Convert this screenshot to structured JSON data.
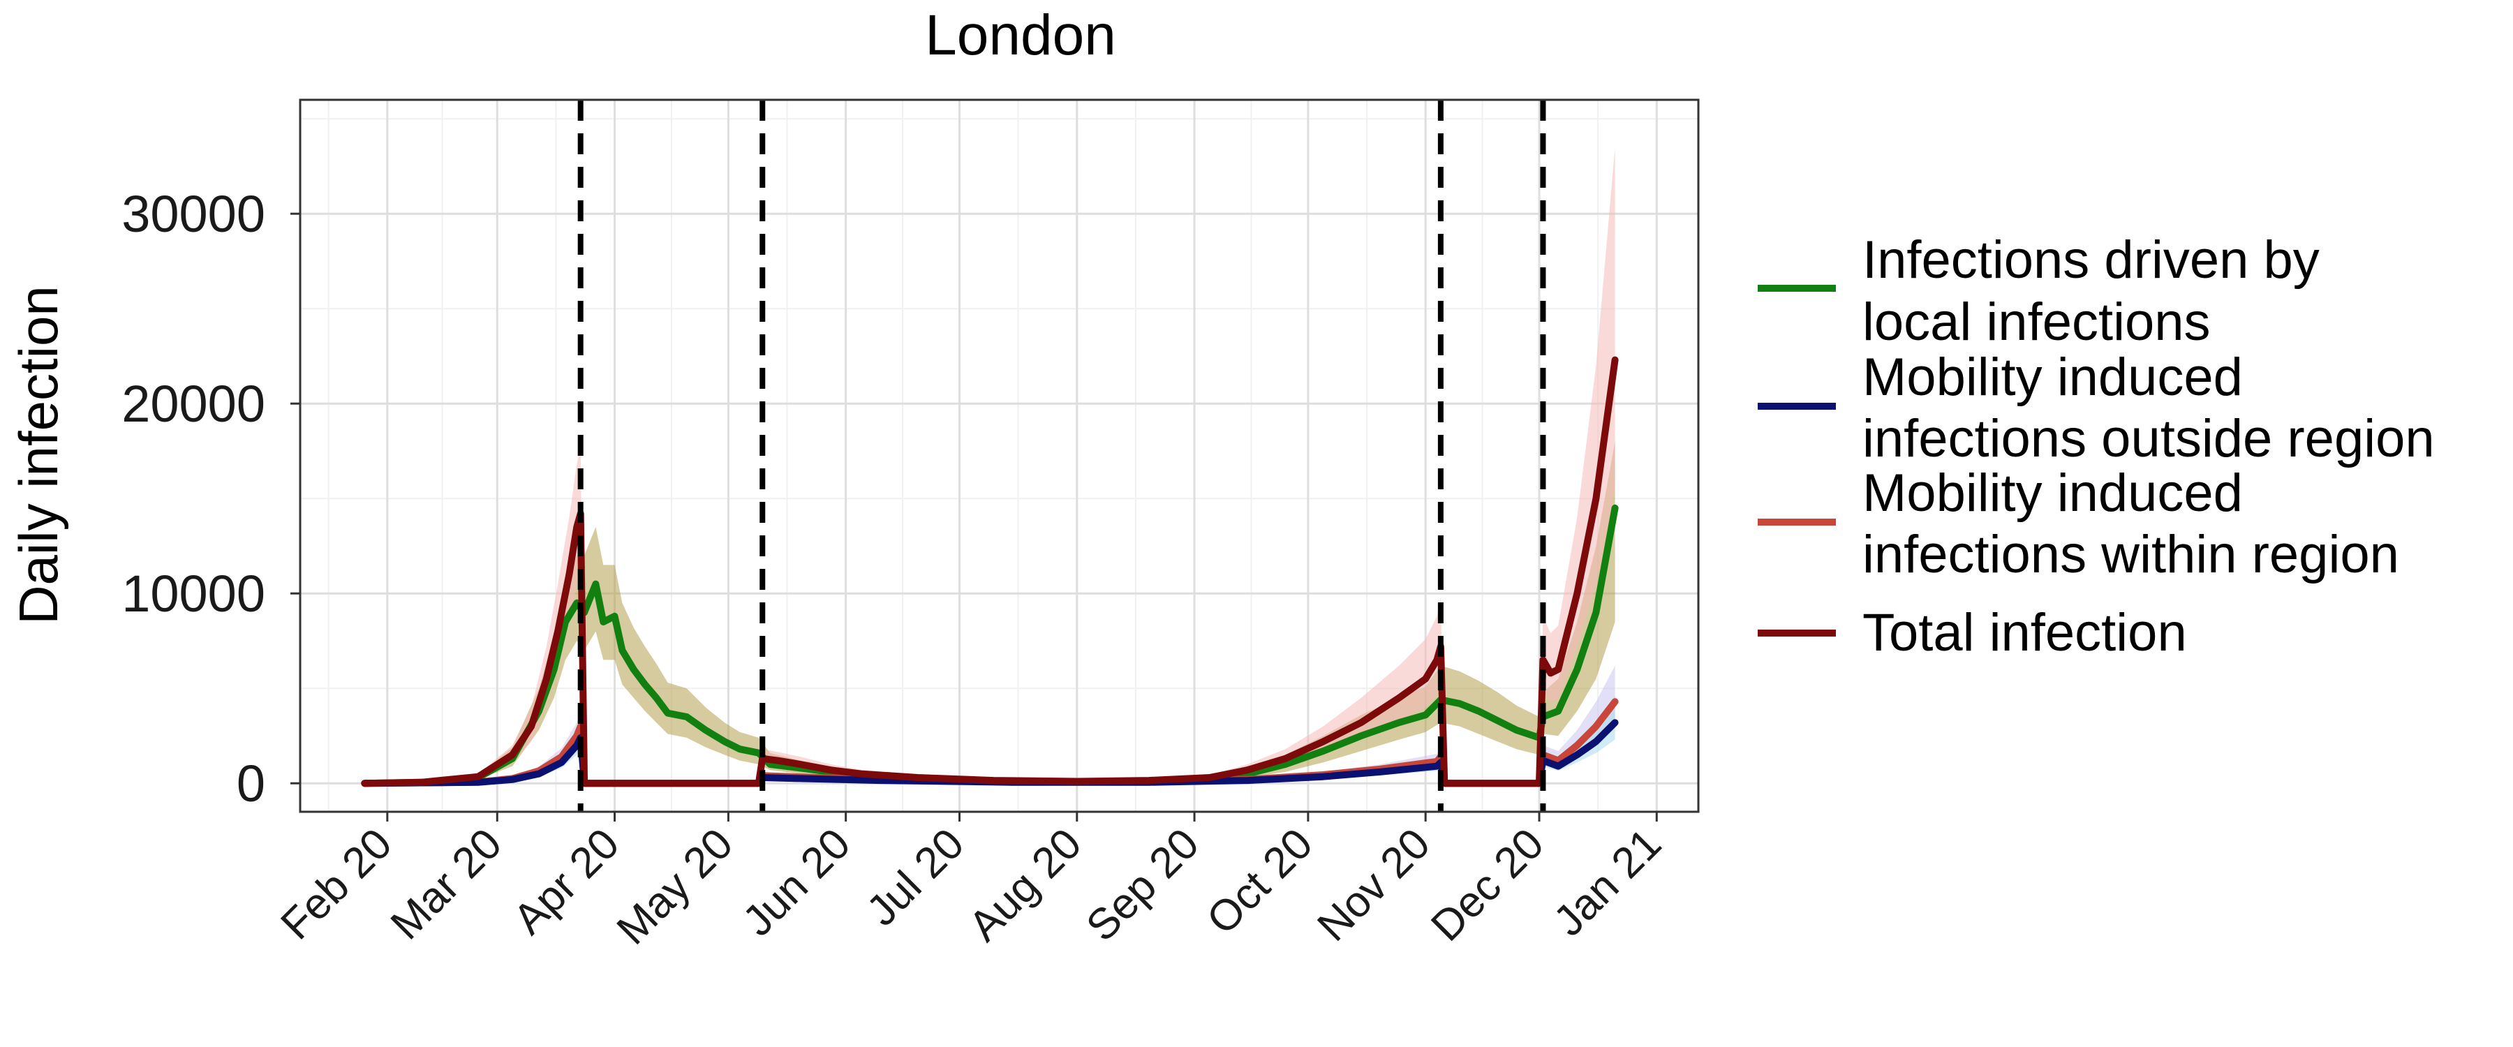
{
  "chart_data": {
    "type": "line",
    "title": "London",
    "xlabel": "",
    "ylabel": "Daily infection",
    "x_ticks": [
      "Feb 20",
      "Mar 20",
      "Apr 20",
      "May 20",
      "Jun 20",
      "Jul 20",
      "Aug 20",
      "Sep 20",
      "Oct 20",
      "Nov 20",
      "Dec 20",
      "Jan 21"
    ],
    "y_ticks": [
      0,
      10000,
      20000,
      30000
    ],
    "xlim": [
      "2020-01-09",
      "2021-01-12"
    ],
    "ylim": [
      -1500,
      36000
    ],
    "grid": true,
    "legend_position": "right",
    "vertical_lines": [
      "2020-03-23",
      "2020-05-10",
      "2020-11-05",
      "2020-12-02"
    ],
    "series": [
      {
        "name": "Infections driven by local infections",
        "color": "#118011",
        "band_color": "#b5a150",
        "x": [
          "2020-01-26",
          "2020-02-10",
          "2020-02-25",
          "2020-03-05",
          "2020-03-12",
          "2020-03-16",
          "2020-03-19",
          "2020-03-22",
          "2020-03-24",
          "2020-03-27",
          "2020-03-29",
          "2020-04-01",
          "2020-04-03",
          "2020-04-06",
          "2020-04-09",
          "2020-04-12",
          "2020-04-15",
          "2020-04-20",
          "2020-04-25",
          "2020-04-30",
          "2020-05-04",
          "2020-05-09",
          "2020-05-12",
          "2020-05-20",
          "2020-05-28",
          "2020-06-05",
          "2020-06-20",
          "2020-07-10",
          "2020-08-01",
          "2020-08-20",
          "2020-09-05",
          "2020-09-15",
          "2020-09-25",
          "2020-10-05",
          "2020-10-15",
          "2020-10-25",
          "2020-11-01",
          "2020-11-05",
          "2020-11-10",
          "2020-11-15",
          "2020-11-20",
          "2020-11-25",
          "2020-12-01",
          "2020-12-02",
          "2020-12-06",
          "2020-12-11",
          "2020-12-16",
          "2020-12-21"
        ],
        "y": [
          0,
          50,
          300,
          1300,
          3800,
          6000,
          8500,
          9500,
          9000,
          10500,
          8500,
          8800,
          7000,
          6000,
          5200,
          4500,
          3700,
          3500,
          2800,
          2200,
          1800,
          1600,
          1000,
          800,
          600,
          400,
          250,
          100,
          80,
          100,
          200,
          500,
          1000,
          1700,
          2500,
          3200,
          3600,
          4400,
          4200,
          3800,
          3300,
          2800,
          2400,
          3500,
          3800,
          6000,
          9000,
          14500
        ],
        "band_low": [
          0,
          30,
          200,
          900,
          2800,
          4500,
          6500,
          7500,
          7000,
          8000,
          6500,
          6500,
          5200,
          4500,
          3800,
          3200,
          2600,
          2400,
          1900,
          1500,
          1200,
          1000,
          700,
          500,
          400,
          250,
          150,
          60,
          50,
          60,
          120,
          300,
          600,
          1100,
          1700,
          2300,
          2700,
          3200,
          3000,
          2600,
          2200,
          1800,
          1500,
          2600,
          2500,
          3800,
          5500,
          8500
        ],
        "band_high": [
          0,
          80,
          450,
          1900,
          5000,
          7800,
          10500,
          12000,
          12000,
          13500,
          11500,
          11500,
          9500,
          8200,
          7200,
          6300,
          5300,
          5000,
          4000,
          3200,
          2700,
          2400,
          1600,
          1200,
          900,
          600,
          380,
          160,
          120,
          150,
          300,
          750,
          1500,
          2500,
          3600,
          4500,
          5100,
          6200,
          5900,
          5400,
          4800,
          4100,
          3500,
          4800,
          5500,
          8500,
          12500,
          18000
        ]
      },
      {
        "name": "Mobility induced infections outside region",
        "color": "#0b1170",
        "band_color": "#a9d8ee",
        "x": [
          "2020-01-26",
          "2020-02-25",
          "2020-03-05",
          "2020-03-12",
          "2020-03-18",
          "2020-03-22",
          "2020-03-23",
          "2020-03-24",
          "2020-05-09",
          "2020-05-10",
          "2020-05-20",
          "2020-06-10",
          "2020-07-15",
          "2020-08-20",
          "2020-09-15",
          "2020-10-05",
          "2020-10-20",
          "2020-11-04",
          "2020-11-05",
          "2020-11-06",
          "2020-12-01",
          "2020-12-02",
          "2020-12-06",
          "2020-12-11",
          "2020-12-16",
          "2020-12-21"
        ],
        "y": [
          0,
          50,
          200,
          500,
          1100,
          2000,
          2400,
          0,
          0,
          300,
          250,
          150,
          50,
          50,
          150,
          350,
          600,
          900,
          1100,
          0,
          0,
          1200,
          900,
          1500,
          2200,
          3200
        ],
        "band_low": [
          0,
          30,
          130,
          350,
          800,
          1500,
          1800,
          0,
          0,
          200,
          170,
          100,
          30,
          30,
          100,
          250,
          420,
          650,
          800,
          0,
          0,
          900,
          650,
          1100,
          1600,
          2300
        ],
        "band_high": [
          0,
          80,
          280,
          700,
          1450,
          2600,
          3100,
          0,
          0,
          420,
          350,
          210,
          80,
          80,
          220,
          500,
          850,
          1250,
          1500,
          0,
          0,
          1600,
          1300,
          2200,
          3200,
          4600
        ]
      },
      {
        "name": "Mobility induced infections within region",
        "color": "#c8473a",
        "band_color": "#c9c6ee",
        "x": [
          "2020-01-26",
          "2020-02-25",
          "2020-03-05",
          "2020-03-12",
          "2020-03-18",
          "2020-03-22",
          "2020-03-23",
          "2020-03-24",
          "2020-05-09",
          "2020-05-10",
          "2020-05-20",
          "2020-06-10",
          "2020-07-15",
          "2020-08-20",
          "2020-09-15",
          "2020-10-05",
          "2020-10-20",
          "2020-11-04",
          "2020-11-05",
          "2020-11-06",
          "2020-12-01",
          "2020-12-02",
          "2020-12-06",
          "2020-12-11",
          "2020-12-16",
          "2020-12-21"
        ],
        "y": [
          0,
          60,
          250,
          650,
          1400,
          2500,
          3000,
          0,
          0,
          400,
          330,
          200,
          60,
          60,
          200,
          450,
          750,
          1150,
          1400,
          0,
          0,
          1500,
          1200,
          2000,
          3000,
          4300
        ],
        "band_low": [
          0,
          40,
          170,
          450,
          1000,
          1900,
          2300,
          0,
          0,
          280,
          230,
          140,
          40,
          40,
          140,
          320,
          530,
          820,
          1000,
          0,
          0,
          1100,
          850,
          1400,
          2100,
          3000
        ],
        "band_high": [
          0,
          90,
          340,
          880,
          1850,
          3200,
          3800,
          0,
          0,
          540,
          450,
          270,
          90,
          90,
          280,
          600,
          1000,
          1550,
          1900,
          0,
          0,
          2000,
          1700,
          2800,
          4300,
          6200
        ]
      },
      {
        "name": "Total infection",
        "color": "#7d0a0a",
        "band_color": "#f5b9b9",
        "x": [
          "2020-01-26",
          "2020-02-10",
          "2020-02-25",
          "2020-03-05",
          "2020-03-10",
          "2020-03-14",
          "2020-03-17",
          "2020-03-20",
          "2020-03-22",
          "2020-03-23",
          "2020-03-24",
          "2020-05-09",
          "2020-05-10",
          "2020-05-14",
          "2020-05-20",
          "2020-05-28",
          "2020-06-05",
          "2020-06-20",
          "2020-07-10",
          "2020-08-01",
          "2020-08-20",
          "2020-09-05",
          "2020-09-15",
          "2020-09-25",
          "2020-10-05",
          "2020-10-15",
          "2020-10-25",
          "2020-11-01",
          "2020-11-04",
          "2020-11-05",
          "2020-11-06",
          "2020-12-01",
          "2020-12-02",
          "2020-12-04",
          "2020-12-06",
          "2020-12-11",
          "2020-12-16",
          "2020-12-21"
        ],
        "y": [
          0,
          50,
          350,
          1500,
          3000,
          5500,
          8000,
          11000,
          13500,
          14200,
          0,
          0,
          1300,
          1200,
          1000,
          700,
          500,
          300,
          150,
          100,
          150,
          300,
          700,
          1300,
          2200,
          3200,
          4500,
          5500,
          6500,
          7200,
          0,
          0,
          6500,
          5800,
          6000,
          10000,
          15000,
          22300
        ],
        "band_low": [
          0,
          30,
          250,
          1100,
          2200,
          4200,
          6000,
          8500,
          10500,
          11000,
          0,
          0,
          950,
          850,
          700,
          500,
          350,
          200,
          100,
          70,
          100,
          200,
          500,
          950,
          1600,
          2300,
          3300,
          4000,
          4700,
          5300,
          0,
          0,
          4800,
          4300,
          4400,
          7200,
          10500,
          15500
        ],
        "band_high": [
          0,
          80,
          500,
          2000,
          4000,
          7200,
          10500,
          14000,
          16800,
          17800,
          0,
          0,
          1800,
          1650,
          1400,
          1000,
          720,
          450,
          230,
          160,
          220,
          450,
          1000,
          1800,
          3000,
          4500,
          6200,
          7600,
          8800,
          9800,
          0,
          0,
          8800,
          7900,
          8300,
          14000,
          22000,
          33500
        ]
      }
    ]
  }
}
